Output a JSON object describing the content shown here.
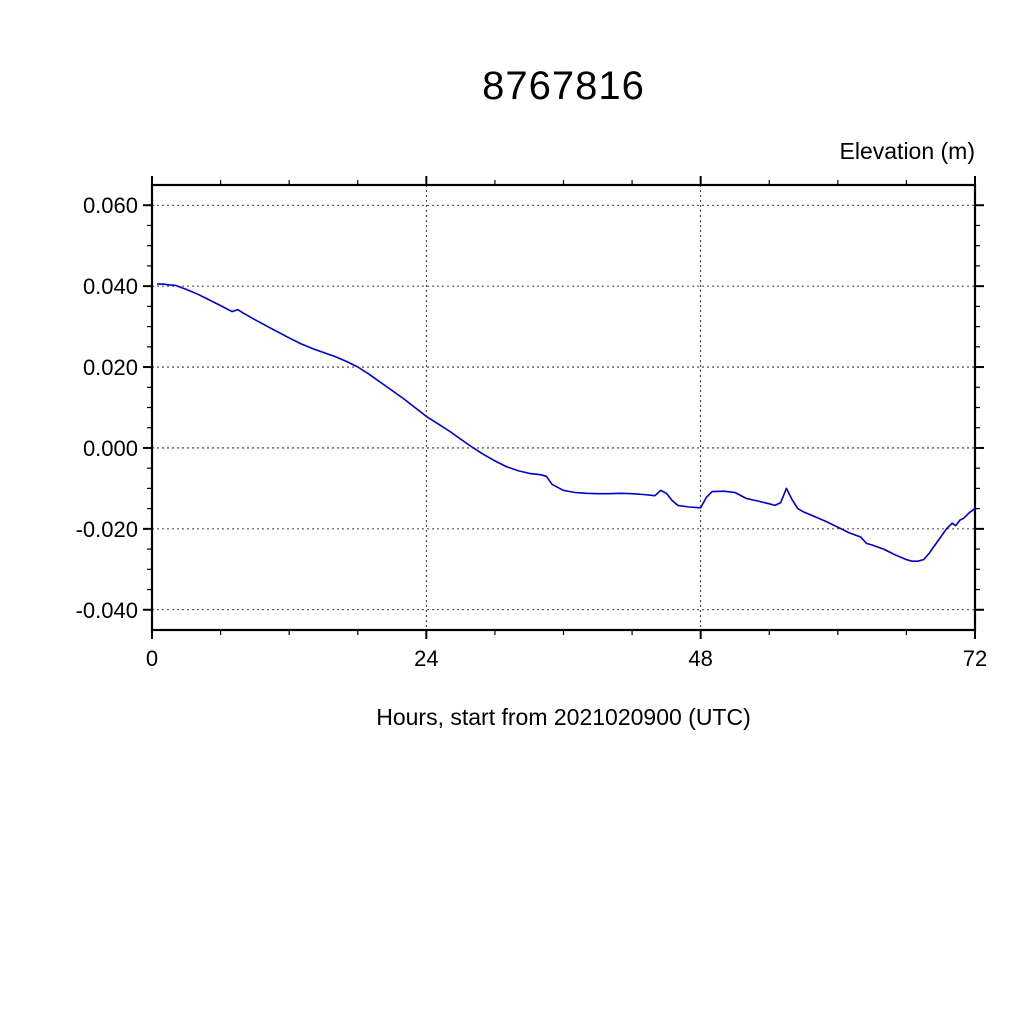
{
  "page": {
    "background": "#ffffff"
  },
  "chart_data": {
    "type": "line",
    "title": "8767816",
    "ylabel": "Elevation (m)",
    "xlabel": "Hours, start from 2021020900 (UTC)",
    "xlim": [
      0,
      72
    ],
    "ylim": [
      -0.045,
      0.065
    ],
    "x_major_ticks": [
      0,
      24,
      48,
      72
    ],
    "x_tick_labels": [
      "0",
      "24",
      "48",
      "72"
    ],
    "x_minor_step": 6,
    "y_major_ticks": [
      -0.04,
      -0.02,
      0.0,
      0.02,
      0.04,
      0.06
    ],
    "y_tick_labels": [
      "-0.040",
      "-0.020",
      "0.000",
      "0.020",
      "0.040",
      "0.060"
    ],
    "y_minor_step": 0.005,
    "grid": true,
    "legend": "none",
    "line_color": "#0000cd",
    "series": [
      {
        "name": "elevation",
        "points": [
          [
            0.5,
            0.0405
          ],
          [
            1,
            0.0405
          ],
          [
            1.5,
            0.0403
          ],
          [
            2,
            0.0402
          ],
          [
            3,
            0.0392
          ],
          [
            4,
            0.038
          ],
          [
            5,
            0.0366
          ],
          [
            6,
            0.0352
          ],
          [
            7,
            0.0337
          ],
          [
            7.5,
            0.0342
          ],
          [
            8,
            0.0333
          ],
          [
            9,
            0.0317
          ],
          [
            10,
            0.0302
          ],
          [
            11,
            0.0287
          ],
          [
            12,
            0.0272
          ],
          [
            13,
            0.0258
          ],
          [
            14,
            0.0246
          ],
          [
            15,
            0.0236
          ],
          [
            16,
            0.0226
          ],
          [
            17,
            0.0214
          ],
          [
            18,
            0.02
          ],
          [
            19,
            0.0182
          ],
          [
            20,
            0.0162
          ],
          [
            21,
            0.0142
          ],
          [
            22,
            0.0122
          ],
          [
            23,
            0.01
          ],
          [
            24,
            0.0078
          ],
          [
            25,
            0.006
          ],
          [
            26,
            0.0042
          ],
          [
            27,
            0.0022
          ],
          [
            28,
            0.0002
          ],
          [
            29,
            -0.0016
          ],
          [
            30,
            -0.0032
          ],
          [
            31,
            -0.0046
          ],
          [
            32,
            -0.0056
          ],
          [
            33,
            -0.0063
          ],
          [
            34,
            -0.0066
          ],
          [
            34.5,
            -0.007
          ],
          [
            35,
            -0.009
          ],
          [
            36,
            -0.0105
          ],
          [
            37,
            -0.011
          ],
          [
            38,
            -0.0112
          ],
          [
            39,
            -0.0113
          ],
          [
            40,
            -0.0113
          ],
          [
            41,
            -0.0112
          ],
          [
            42,
            -0.0113
          ],
          [
            43,
            -0.0115
          ],
          [
            44,
            -0.0118
          ],
          [
            44.5,
            -0.0105
          ],
          [
            45,
            -0.0112
          ],
          [
            45.5,
            -0.013
          ],
          [
            46,
            -0.0142
          ],
          [
            47,
            -0.0146
          ],
          [
            48,
            -0.0148
          ],
          [
            48.5,
            -0.0122
          ],
          [
            49,
            -0.0108
          ],
          [
            50,
            -0.0107
          ],
          [
            51,
            -0.011
          ],
          [
            52,
            -0.0125
          ],
          [
            53,
            -0.0131
          ],
          [
            54,
            -0.0138
          ],
          [
            54.5,
            -0.0142
          ],
          [
            55,
            -0.0135
          ],
          [
            55.5,
            -0.01
          ],
          [
            56,
            -0.0128
          ],
          [
            56.5,
            -0.015
          ],
          [
            57,
            -0.0158
          ],
          [
            58,
            -0.017
          ],
          [
            59,
            -0.0182
          ],
          [
            60,
            -0.0196
          ],
          [
            61,
            -0.021
          ],
          [
            62,
            -0.022
          ],
          [
            62.5,
            -0.0236
          ],
          [
            63,
            -0.024
          ],
          [
            64,
            -0.025
          ],
          [
            65,
            -0.0264
          ],
          [
            66,
            -0.0276
          ],
          [
            66.5,
            -0.028
          ],
          [
            67,
            -0.028
          ],
          [
            67.5,
            -0.0276
          ],
          [
            68,
            -0.026
          ],
          [
            68.5,
            -0.024
          ],
          [
            69,
            -0.022
          ],
          [
            69.5,
            -0.02
          ],
          [
            70,
            -0.0186
          ],
          [
            70.3,
            -0.0192
          ],
          [
            70.7,
            -0.0178
          ],
          [
            71,
            -0.0174
          ],
          [
            71.5,
            -0.016
          ],
          [
            72,
            -0.015
          ]
        ]
      }
    ]
  }
}
